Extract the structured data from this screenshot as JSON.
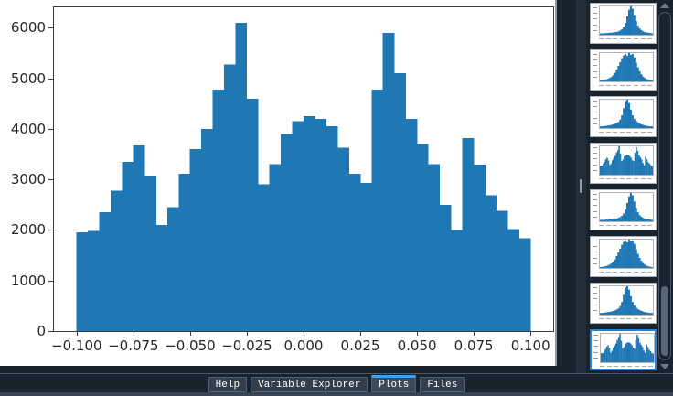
{
  "pane": {
    "name": "Plots",
    "background_color": "#19232d",
    "canvas_color": "#ffffff"
  },
  "chart_data": {
    "type": "bar",
    "subtype": "histogram",
    "title": "",
    "xlabel": "",
    "ylabel": "",
    "bar_color": "#1f77b4",
    "grid": false,
    "legend": null,
    "bin_start": -0.1,
    "bin_width": 0.005,
    "values": [
      1950,
      1980,
      2350,
      2780,
      3350,
      3670,
      3080,
      2100,
      2450,
      3110,
      3600,
      4000,
      4780,
      5270,
      6100,
      4600,
      2900,
      3300,
      3900,
      4150,
      4250,
      4200,
      4050,
      3630,
      3110,
      2930,
      4780,
      5900,
      5100,
      4200,
      3700,
      3300,
      2500,
      2000,
      3820,
      3290,
      2690,
      2380,
      2020,
      1840
    ],
    "xlim": [
      -0.11,
      0.11
    ],
    "ylim": [
      0,
      6405
    ],
    "x_ticks": [
      -0.1,
      -0.075,
      -0.05,
      -0.025,
      0.0,
      0.025,
      0.05,
      0.075,
      0.1
    ],
    "x_tick_labels": [
      "−0.100",
      "−0.075",
      "−0.050",
      "−0.025",
      "0.000",
      "0.025",
      "0.050",
      "0.075",
      "0.100"
    ],
    "y_ticks": [
      0,
      1000,
      2000,
      3000,
      4000,
      5000,
      6000
    ],
    "y_tick_labels": [
      "0",
      "1000",
      "2000",
      "3000",
      "4000",
      "5000",
      "6000"
    ]
  },
  "thumbnails": {
    "selection_color": "#2d7fc9",
    "bar_color": "#1f77b4",
    "tops": [
      3,
      54,
      105,
      156,
      207,
      258,
      309,
      360
    ],
    "items": [
      {
        "shape": "sharp_peak",
        "selected": false
      },
      {
        "shape": "broad_peak",
        "selected": false
      },
      {
        "shape": "sharp_peak_wide_base",
        "selected": false
      },
      {
        "shape": "multi_peak",
        "selected": false
      },
      {
        "shape": "sharp_peak",
        "selected": false
      },
      {
        "shape": "broad_peak",
        "selected": false
      },
      {
        "shape": "sharp_peak_wide_base",
        "selected": false
      },
      {
        "shape": "multi_peak",
        "selected": true
      }
    ],
    "shapes": {
      "sharp_peak": [
        0.05,
        0.05,
        0.05,
        0.06,
        0.06,
        0.07,
        0.07,
        0.08,
        0.09,
        0.1,
        0.12,
        0.15,
        0.2,
        0.28,
        0.42,
        0.65,
        0.88,
        1.0,
        0.92,
        0.7,
        0.48,
        0.32,
        0.22,
        0.16,
        0.12,
        0.09,
        0.08,
        0.07,
        0.06,
        0.05
      ],
      "broad_peak": [
        0.03,
        0.04,
        0.05,
        0.07,
        0.09,
        0.12,
        0.16,
        0.22,
        0.3,
        0.42,
        0.55,
        0.68,
        0.82,
        0.92,
        0.97,
        0.9,
        1.0,
        0.94,
        0.97,
        0.85,
        0.66,
        0.5,
        0.36,
        0.25,
        0.17,
        0.12,
        0.08,
        0.06,
        0.04,
        0.03
      ],
      "sharp_peak_wide_base": [
        0.06,
        0.06,
        0.07,
        0.08,
        0.09,
        0.1,
        0.11,
        0.13,
        0.15,
        0.18,
        0.22,
        0.3,
        0.45,
        0.7,
        0.95,
        1.0,
        0.88,
        0.65,
        0.45,
        0.32,
        0.25,
        0.2,
        0.16,
        0.13,
        0.11,
        0.09,
        0.08,
        0.07,
        0.06,
        0.06
      ],
      "multi_peak": [
        0.32,
        0.32,
        0.39,
        0.46,
        0.55,
        0.6,
        0.5,
        0.34,
        0.4,
        0.51,
        0.59,
        0.66,
        0.78,
        0.86,
        1.0,
        0.75,
        0.48,
        0.54,
        0.64,
        0.68,
        0.7,
        0.69,
        0.66,
        0.6,
        0.51,
        0.48,
        0.78,
        0.97,
        0.84,
        0.69,
        0.61,
        0.54,
        0.41,
        0.33,
        0.63,
        0.54,
        0.44,
        0.39,
        0.33,
        0.3
      ]
    }
  },
  "tabbar": {
    "highlight_color": "#3da1f5",
    "tabs": [
      {
        "label": "Help",
        "selected": false
      },
      {
        "label": "Variable Explorer",
        "selected": false
      },
      {
        "label": "Plots",
        "selected": true
      },
      {
        "label": "Files",
        "selected": false
      }
    ]
  }
}
